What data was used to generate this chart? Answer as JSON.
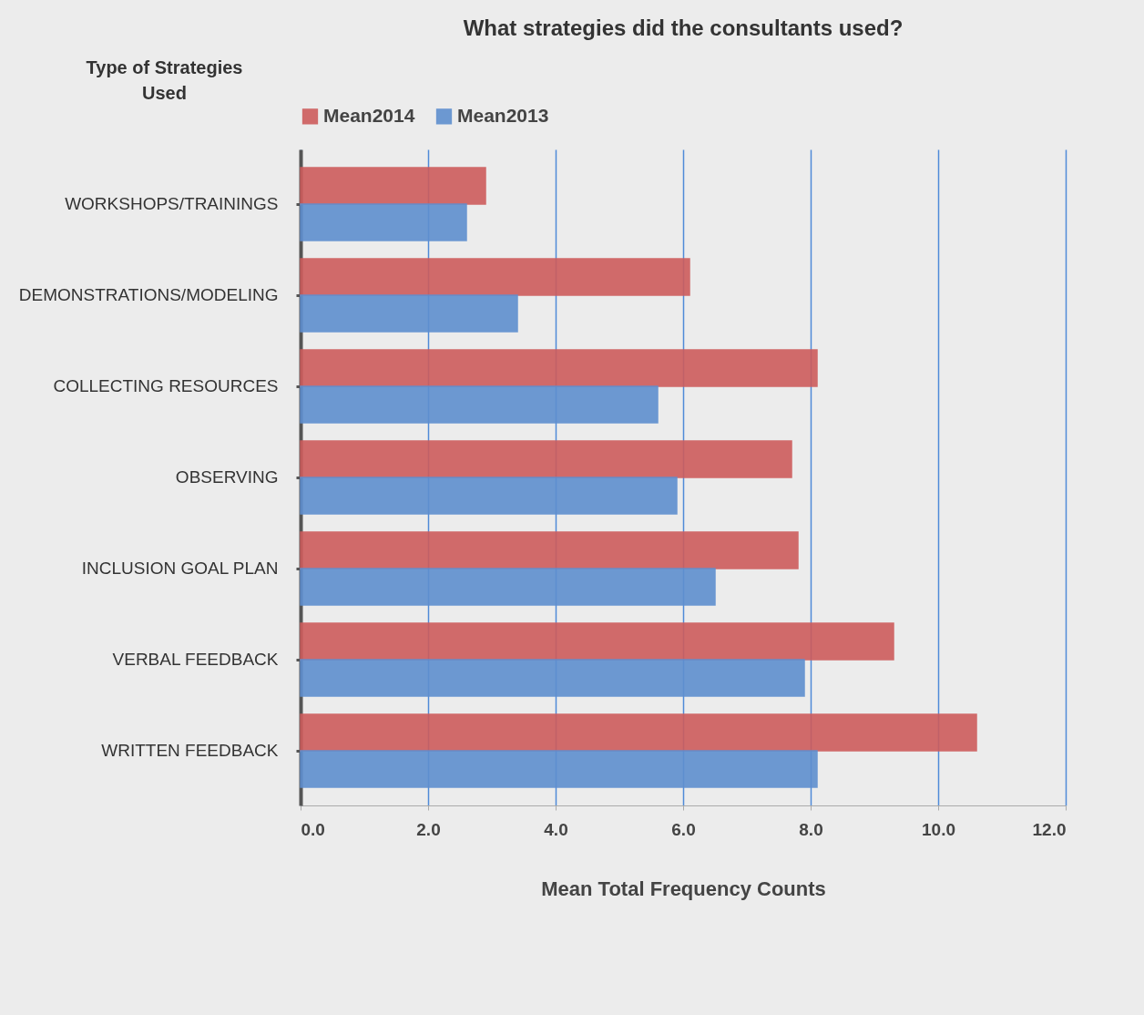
{
  "chart_data": {
    "type": "bar",
    "orientation": "horizontal",
    "title": "What strategies did the consultants used?",
    "xlabel": "Mean Total Frequency Counts",
    "ylabel": "Type of Strategies Used",
    "categories": [
      "WORKSHOPS/TRAININGS",
      "DEMONSTRATIONS/MODELING",
      "COLLECTING RESOURCES",
      "OBSERVING",
      "INCLUSION GOAL PLAN",
      "VERBAL FEEDBACK",
      "WRITTEN FEEDBACK"
    ],
    "series": [
      {
        "name": "Mean2014",
        "color": "#cd5c5c",
        "values": [
          2.9,
          6.1,
          8.1,
          7.7,
          7.8,
          9.3,
          10.6
        ]
      },
      {
        "name": "Mean2013",
        "color": "#5f8fcf",
        "values": [
          2.6,
          3.4,
          5.6,
          5.9,
          6.5,
          7.9,
          8.1
        ]
      }
    ],
    "xlim": [
      0,
      12
    ],
    "xticks": [
      {
        "value": 0,
        "label": "0.0"
      },
      {
        "value": 2,
        "label": "2.0"
      },
      {
        "value": 4,
        "label": "4.0"
      },
      {
        "value": 6,
        "label": "6.0"
      },
      {
        "value": 8,
        "label": "8.0"
      },
      {
        "value": 10,
        "label": "10.0"
      },
      {
        "value": 12,
        "label": "12.0"
      }
    ],
    "grid": "x",
    "legend": "top"
  }
}
